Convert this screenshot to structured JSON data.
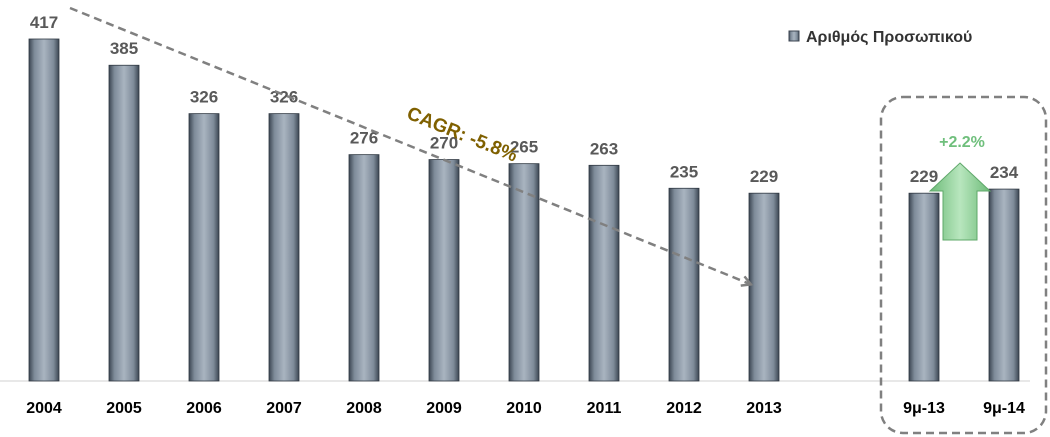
{
  "chart_data": {
    "type": "bar",
    "categories": [
      "2004",
      "2005",
      "2006",
      "2007",
      "2008",
      "2009",
      "2010",
      "2011",
      "2012",
      "2013",
      "",
      "9μ-13",
      "9μ-14"
    ],
    "series": [
      {
        "name": "Αριθμός Προσωπικού",
        "values": [
          417,
          385,
          326,
          326,
          276,
          270,
          265,
          263,
          235,
          229,
          null,
          229,
          234
        ]
      }
    ],
    "legend": {
      "label": "Αριθμός Προσωπικού",
      "position": "top-right"
    },
    "annotations": {
      "cagr": "CAGR: -5.8%",
      "growth": "+2.2%"
    },
    "ylim": [
      0,
      417
    ],
    "grid": false,
    "colors": {
      "bar_mid": "#7E8B99",
      "bar_dark": "#3C4652",
      "bar_light": "#A9B4C0",
      "trend_line": "#808080",
      "arrow_green": "#8FD49A",
      "box_border": "#808080"
    }
  }
}
